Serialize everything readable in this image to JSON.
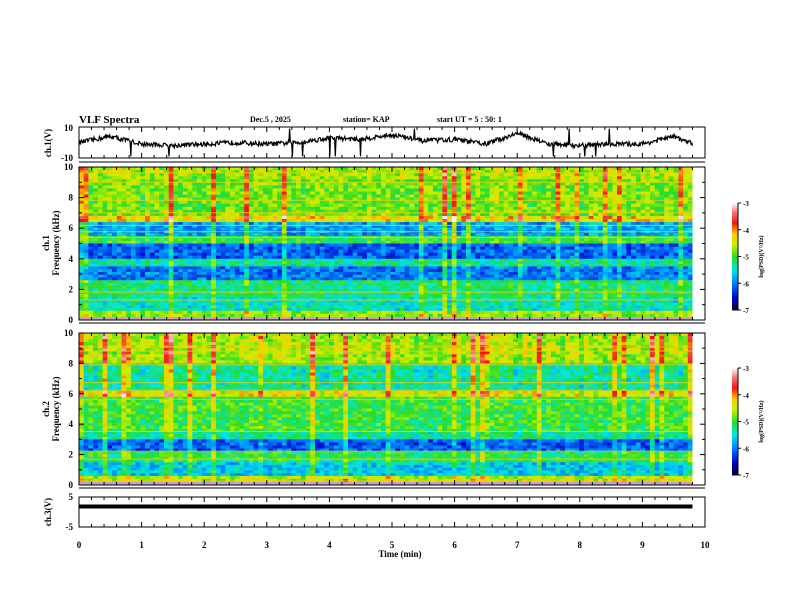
{
  "header": {
    "title": "VLF Spectra",
    "date": "Dec.5 , 2025",
    "station": "station= KAP",
    "start": "start UT = 5 : 50: 1"
  },
  "chart_data": [
    {
      "type": "line",
      "name": "ch1-waveform",
      "ylabel": "ch.1(V)",
      "ylim": [
        -10,
        10
      ],
      "yticks": [
        "10",
        "-10"
      ],
      "xlim": [
        0,
        10
      ],
      "x_end": 9.8,
      "description_values": "waveform oscillating roughly between -5 and 8 V",
      "series": [
        {
          "name": "ch.1",
          "x": [
            0,
            0.5,
            1,
            1.5,
            2,
            2.5,
            3,
            3.5,
            4,
            4.5,
            5,
            5.5,
            6,
            6.5,
            7,
            7.5,
            8,
            8.5,
            9,
            9.5,
            9.8
          ],
          "values": [
            0,
            4,
            -1,
            -2,
            -1,
            0,
            -1,
            0,
            3,
            2,
            5,
            1,
            2,
            -1,
            6,
            -1,
            -2,
            -1,
            -1,
            4,
            -1
          ]
        }
      ]
    },
    {
      "type": "heatmap",
      "name": "ch1-spectrogram",
      "ylabel": "ch.1\nFrequency (kHz)",
      "ylabel_line1": "ch.1",
      "ylabel_line2": "Frequency (kHz)",
      "ylim": [
        0,
        10
      ],
      "yticks": [
        "0",
        "2",
        "4",
        "6",
        "8",
        "10"
      ],
      "xlim": [
        0,
        10
      ],
      "colorbar": {
        "label": "log(PSD)(V²/Hz)",
        "range": [
          -7,
          -3
        ],
        "ticks": [
          "-3",
          "-4",
          "-5",
          "-6",
          "-7"
        ]
      },
      "bands_khz": [
        {
          "from": 9.2,
          "to": 10,
          "level": -4.6
        },
        {
          "from": 6.8,
          "to": 9.2,
          "level": -4.8
        },
        {
          "from": 6.4,
          "to": 6.8,
          "level": -4.3
        },
        {
          "from": 5.5,
          "to": 6.4,
          "level": -5.8
        },
        {
          "from": 5.0,
          "to": 5.5,
          "level": -5.0
        },
        {
          "from": 4.0,
          "to": 5.0,
          "level": -6.1
        },
        {
          "from": 3.5,
          "to": 4.0,
          "level": -5.3
        },
        {
          "from": 2.6,
          "to": 3.5,
          "level": -6.0
        },
        {
          "from": 1.5,
          "to": 2.6,
          "level": -5.2
        },
        {
          "from": 0.6,
          "to": 1.5,
          "level": -5.4
        },
        {
          "from": 0,
          "to": 0.6,
          "level": -4.7
        }
      ]
    },
    {
      "type": "heatmap",
      "name": "ch2-spectrogram",
      "ylabel_line1": "ch.2",
      "ylabel_line2": "Frequency (kHz)",
      "ylim": [
        0,
        10
      ],
      "yticks": [
        "0",
        "2",
        "4",
        "6",
        "8",
        "10"
      ],
      "xlim": [
        0,
        10
      ],
      "colorbar": {
        "label": "log(PSD)(V²/Hz)",
        "range": [
          -7,
          -3
        ],
        "ticks": [
          "-3",
          "-4",
          "-5",
          "-6",
          "-7"
        ]
      },
      "bands_khz": [
        {
          "from": 8.0,
          "to": 10,
          "level": -4.6
        },
        {
          "from": 6.2,
          "to": 8.0,
          "level": -5.3
        },
        {
          "from": 5.8,
          "to": 6.2,
          "level": -4.4
        },
        {
          "from": 3.5,
          "to": 5.8,
          "level": -5.0
        },
        {
          "from": 3.0,
          "to": 3.5,
          "level": -5.3
        },
        {
          "from": 2.2,
          "to": 3.0,
          "level": -6.1
        },
        {
          "from": 1.5,
          "to": 2.2,
          "level": -5.1
        },
        {
          "from": 0.6,
          "to": 1.5,
          "level": -5.6
        },
        {
          "from": 0,
          "to": 0.6,
          "level": -4.6
        }
      ]
    },
    {
      "type": "line",
      "name": "ch3-waveform",
      "ylabel": "ch.3(V)",
      "ylim": [
        -5,
        5
      ],
      "yticks": [
        "5",
        "-5"
      ],
      "xlim": [
        0,
        10
      ],
      "x_end": 9.8,
      "band_center": 1.5,
      "band_halfwidth": 0.5
    },
    {
      "type": "axis",
      "name": "time-axis",
      "xlabel": "Time (min)",
      "xticks": [
        "0",
        "1",
        "2",
        "3",
        "4",
        "5",
        "6",
        "7",
        "8",
        "9",
        "10"
      ]
    }
  ]
}
